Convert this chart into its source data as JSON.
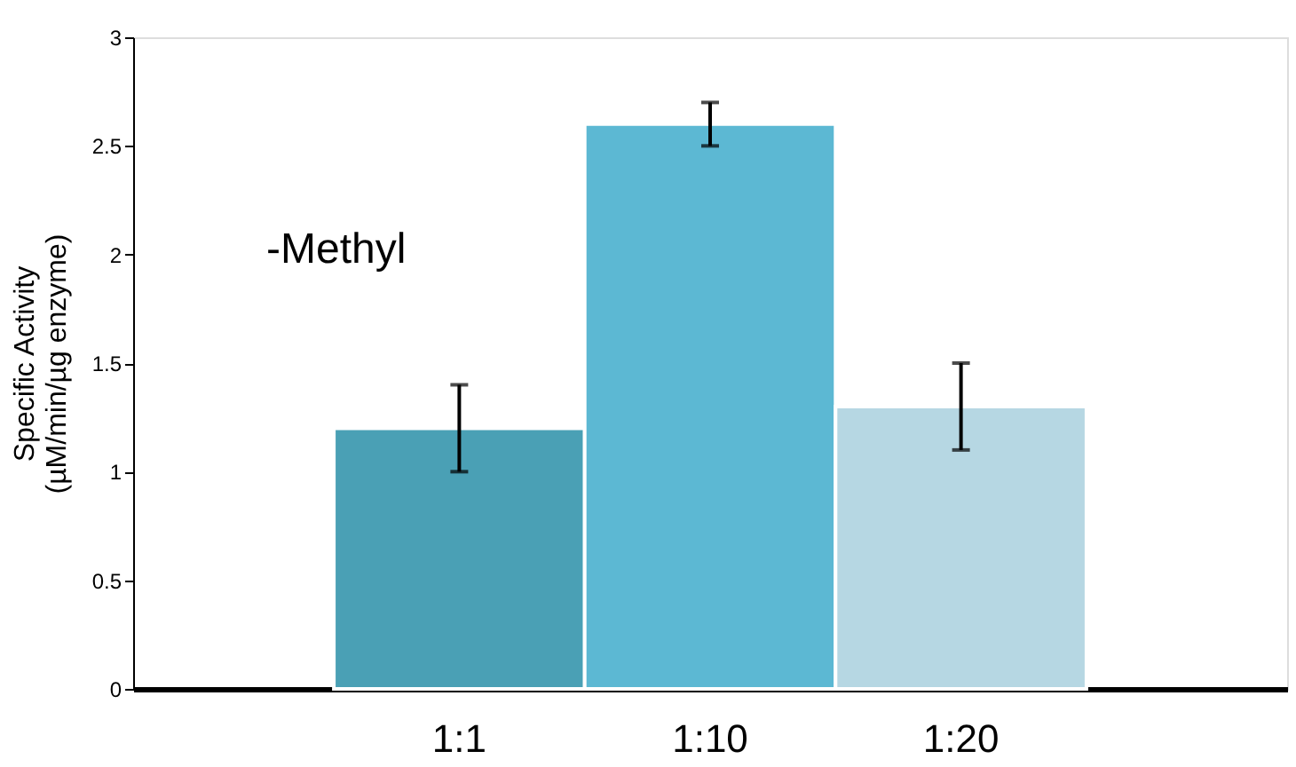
{
  "chart_data": {
    "type": "bar",
    "categories": [
      "1:1",
      "1:10",
      "1:20"
    ],
    "values": [
      1.2,
      2.6,
      1.3
    ],
    "errors": [
      0.2,
      0.1,
      0.2
    ],
    "colors": [
      "#4aa0b5",
      "#5cb8d3",
      "#b6d7e3"
    ],
    "ylabel": "Specific Activity\n(µM/min/µg enzyme)",
    "ylim": [
      0,
      3
    ],
    "yticks": [
      0,
      0.5,
      1,
      1.5,
      2,
      2.5,
      3
    ],
    "annotations": [
      "-Methyl"
    ],
    "grid": false
  }
}
